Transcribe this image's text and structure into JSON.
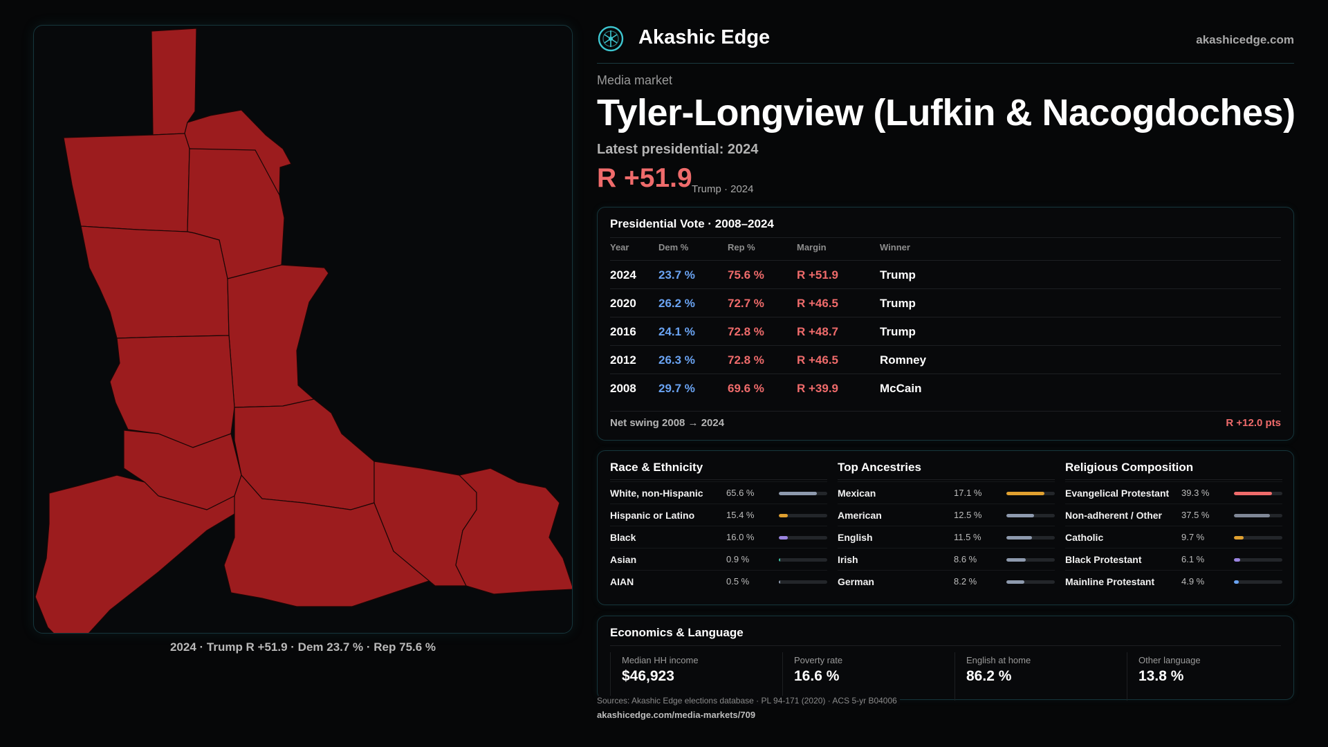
{
  "colors": {
    "rep": "#9c1c1e",
    "rep_text": "#ef6b6b",
    "dem_text": "#6aa3f2",
    "accent": "#3ec6d0"
  },
  "map": {
    "caption": "2024 · Trump R +51.9 · Dem 23.7 % · Rep 75.6 %"
  },
  "header": {
    "brand": "Akashic Edge",
    "site": "akashicedge.com",
    "logo_icon": "akashic-logo-icon"
  },
  "hero": {
    "kicker": "Media market",
    "title": "Tyler-Longview (Lufkin & Nacogdoches)",
    "subtitle": "Latest presidential: 2024",
    "margin": "R +51.9",
    "margin_note": "Trump · 2024"
  },
  "vote": {
    "title": "Presidential Vote · 2008–2024",
    "headers": {
      "year": "Year",
      "dem": "Dem %",
      "rep": "Rep %",
      "margin": "Margin",
      "winner": "Winner"
    },
    "rows": [
      {
        "year": "2024",
        "dem": "23.7 %",
        "rep": "75.6 %",
        "margin": "R +51.9",
        "winner": "Trump"
      },
      {
        "year": "2020",
        "dem": "26.2 %",
        "rep": "72.7 %",
        "margin": "R +46.5",
        "winner": "Trump"
      },
      {
        "year": "2016",
        "dem": "24.1 %",
        "rep": "72.8 %",
        "margin": "R +48.7",
        "winner": "Trump"
      },
      {
        "year": "2012",
        "dem": "26.3 %",
        "rep": "72.8 %",
        "margin": "R +46.5",
        "winner": "Romney"
      },
      {
        "year": "2008",
        "dem": "29.7 %",
        "rep": "69.6 %",
        "margin": "R +39.9",
        "winner": "McCain"
      }
    ],
    "net_label": "Net swing 2008 → 2024",
    "net_value": "R +12.0 pts"
  },
  "race": {
    "title": "Race & Ethnicity",
    "items": [
      {
        "label": "White, non-Hispanic",
        "pct": "65.6 %",
        "value": 65.6,
        "color": "#8e9aae"
      },
      {
        "label": "Hispanic or Latino",
        "pct": "15.4 %",
        "value": 15.4,
        "color": "#e0a030"
      },
      {
        "label": "Black",
        "pct": "16.0 %",
        "value": 16.0,
        "color": "#9a84e0"
      },
      {
        "label": "Asian",
        "pct": "0.9 %",
        "value": 0.9,
        "color": "#3ec6a8"
      },
      {
        "label": "AIAN",
        "pct": "0.5 %",
        "value": 0.5,
        "color": "#8e9aae"
      }
    ]
  },
  "ancestry": {
    "title": "Top Ancestries",
    "items": [
      {
        "label": "Mexican",
        "pct": "17.1 %",
        "value": 17.1,
        "color": "#e0a030"
      },
      {
        "label": "American",
        "pct": "12.5 %",
        "value": 12.5,
        "color": "#8e9aae"
      },
      {
        "label": "English",
        "pct": "11.5 %",
        "value": 11.5,
        "color": "#8e9aae"
      },
      {
        "label": "Irish",
        "pct": "8.6 %",
        "value": 8.6,
        "color": "#8e9aae"
      },
      {
        "label": "German",
        "pct": "8.2 %",
        "value": 8.2,
        "color": "#8e9aae"
      }
    ]
  },
  "religion": {
    "title": "Religious Composition",
    "items": [
      {
        "label": "Evangelical Protestant",
        "pct": "39.3 %",
        "value": 39.3,
        "color": "#ef6b6b"
      },
      {
        "label": "Non-adherent / Other",
        "pct": "37.5 %",
        "value": 37.5,
        "color": "#7f8796"
      },
      {
        "label": "Catholic",
        "pct": "9.7 %",
        "value": 9.7,
        "color": "#e0a030"
      },
      {
        "label": "Black Protestant",
        "pct": "6.1 %",
        "value": 6.1,
        "color": "#9a84e0"
      },
      {
        "label": "Mainline Protestant",
        "pct": "4.9 %",
        "value": 4.9,
        "color": "#6aa3f2"
      }
    ]
  },
  "econ": {
    "title": "Economics & Language",
    "cells": [
      {
        "label": "Median HH income",
        "value": "$46,923"
      },
      {
        "label": "Poverty rate",
        "value": "16.6 %"
      },
      {
        "label": "English at home",
        "value": "86.2 %"
      },
      {
        "label": "Other language",
        "value": "13.8 %"
      }
    ]
  },
  "footer": {
    "sources": "Sources: Akashic Edge elections database · PL 94-171 (2020) · ACS 5-yr B04006",
    "url": "akashicedge.com/media-markets/709"
  }
}
